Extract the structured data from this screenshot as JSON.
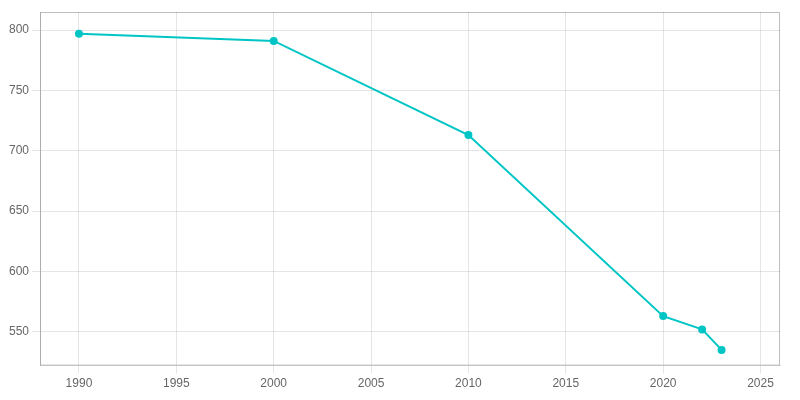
{
  "chart_data": {
    "type": "line",
    "x": [
      1990,
      2000,
      2010,
      2020,
      2022,
      2023
    ],
    "values": [
      797,
      791,
      713,
      563,
      552,
      535
    ],
    "color": "#00C5C5",
    "marker": "circle",
    "xlim": [
      1988,
      2026
    ],
    "ylim": [
      522,
      815
    ],
    "xticks": [
      1990,
      1995,
      2000,
      2005,
      2010,
      2015,
      2020,
      2025
    ],
    "yticks": [
      550,
      600,
      650,
      700,
      750,
      800
    ],
    "grid": true
  }
}
